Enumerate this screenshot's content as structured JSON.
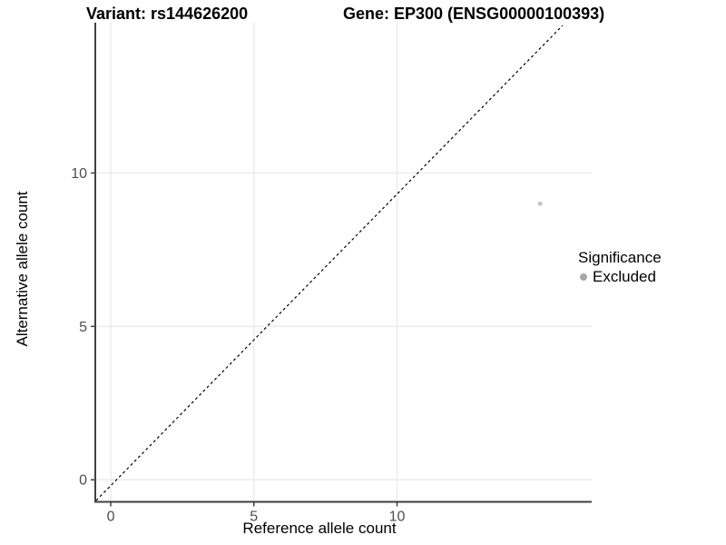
{
  "chart_data": {
    "type": "scatter",
    "title_variant": "Variant: rs144626200",
    "title_gene": "Gene: EP300 (ENSG00000100393)",
    "xlabel": "Reference allele count",
    "ylabel": "Alternative allele count",
    "x_ticks": [
      "0",
      "5",
      "10"
    ],
    "x_tick_values": [
      0,
      5,
      10
    ],
    "y_ticks": [
      "0",
      "5",
      "10"
    ],
    "y_tick_values": [
      0,
      5,
      10
    ],
    "xlim": [
      -0.54,
      16.8
    ],
    "ylim": [
      -0.72,
      14.9
    ],
    "grid": "major-only",
    "points": [
      {
        "x": 15,
        "y": 9,
        "series": "Excluded",
        "color": "#c6c6c6",
        "radius": 2.5
      }
    ],
    "reference_line": {
      "type": "identity",
      "label": "y = x",
      "style": "dashed",
      "color": "#000000"
    },
    "legend": {
      "title": "Significance",
      "position": "right-middle",
      "entries": [
        {
          "label": "Excluded",
          "color": "#a8a8a8"
        }
      ]
    }
  },
  "colors": {
    "background": "#ffffff",
    "axis_line": "#404040",
    "tick_label": "#4d4d4d",
    "gridline": "#ececec"
  }
}
